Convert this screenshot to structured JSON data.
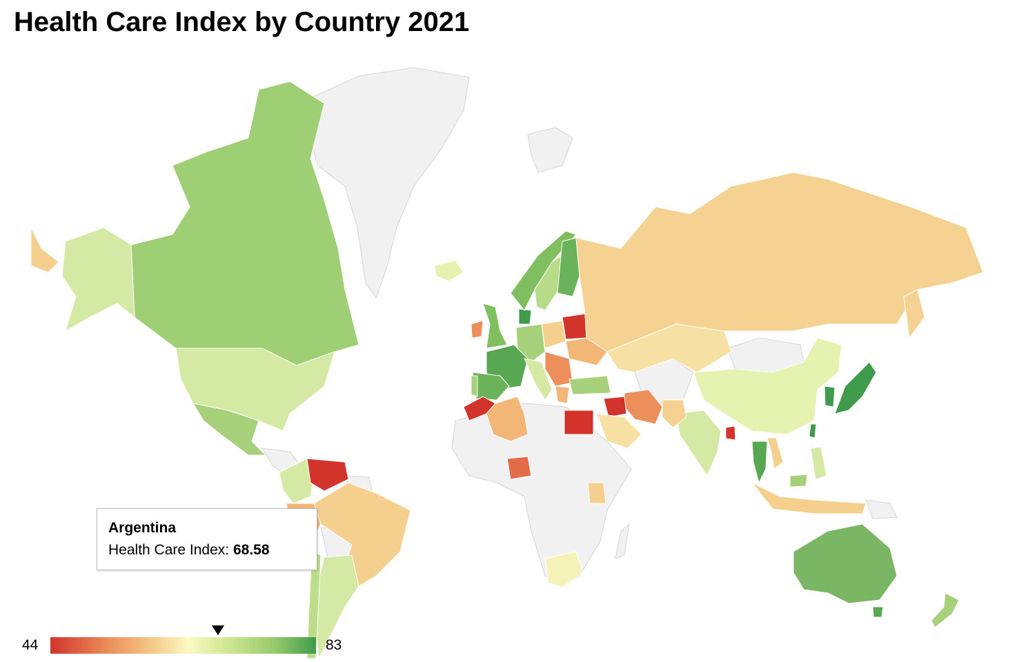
{
  "title": "Health Care Index by Country 2021",
  "legend": {
    "min_label": "44",
    "max_label": "83",
    "min": 44,
    "max": 83,
    "marker_value": 68.58,
    "colors": [
      "#d2342c",
      "#ec8f5a",
      "#f5cf8d",
      "#fbf9c3",
      "#d8ea9a",
      "#98cb6b",
      "#3f9b4b"
    ]
  },
  "tooltip": {
    "country": "Argentina",
    "label": "Health Care Index:",
    "value": "68.58"
  },
  "no_data_color": "#f1f1f1",
  "chart_data": {
    "type": "choropleth",
    "title": "Health Care Index by Country 2021",
    "value_range": [
      44,
      83
    ],
    "regions": [
      {
        "name": "Canada",
        "value": 71
      },
      {
        "name": "United States",
        "value": 69
      },
      {
        "name": "Alaska",
        "value": 67
      },
      {
        "name": "Mexico",
        "value": 71
      },
      {
        "name": "Colombia",
        "value": 66
      },
      {
        "name": "Venezuela",
        "value": 45
      },
      {
        "name": "Brazil",
        "value": 57
      },
      {
        "name": "Peru",
        "value": 55
      },
      {
        "name": "Argentina",
        "value": 68.58
      },
      {
        "name": "Chile",
        "value": 67
      },
      {
        "name": "Iceland",
        "value": 66
      },
      {
        "name": "Ireland",
        "value": 52
      },
      {
        "name": "United Kingdom",
        "value": 74
      },
      {
        "name": "France",
        "value": 79
      },
      {
        "name": "Spain",
        "value": 78
      },
      {
        "name": "Portugal",
        "value": 73
      },
      {
        "name": "Germany",
        "value": 73
      },
      {
        "name": "Netherlands",
        "value": 76
      },
      {
        "name": "Denmark",
        "value": 80
      },
      {
        "name": "Norway",
        "value": 75
      },
      {
        "name": "Sweden",
        "value": 70
      },
      {
        "name": "Finland",
        "value": 77
      },
      {
        "name": "Poland",
        "value": 58
      },
      {
        "name": "Belarus",
        "value": 45
      },
      {
        "name": "Ukraine",
        "value": 54
      },
      {
        "name": "Italy",
        "value": 66
      },
      {
        "name": "Hungary",
        "value": 55
      },
      {
        "name": "Romania",
        "value": 55
      },
      {
        "name": "Greece",
        "value": 55
      },
      {
        "name": "Turkey",
        "value": 70
      },
      {
        "name": "Russia",
        "value": 58
      },
      {
        "name": "Kazakhstan",
        "value": 61
      },
      {
        "name": "China",
        "value": 65
      },
      {
        "name": "Japan",
        "value": 82
      },
      {
        "name": "Taiwan",
        "value": 83
      },
      {
        "name": "South Korea",
        "value": 82
      },
      {
        "name": "India",
        "value": 65
      },
      {
        "name": "Pakistan",
        "value": 60
      },
      {
        "name": "Iran",
        "value": 52
      },
      {
        "name": "Iraq",
        "value": 46
      },
      {
        "name": "Saudi Arabia",
        "value": 60
      },
      {
        "name": "Egypt",
        "value": 47
      },
      {
        "name": "Morocco",
        "value": 46
      },
      {
        "name": "Algeria",
        "value": 56
      },
      {
        "name": "Nigeria",
        "value": 49
      },
      {
        "name": "Kenya",
        "value": 58
      },
      {
        "name": "South Africa",
        "value": 63
      },
      {
        "name": "Thailand",
        "value": 78
      },
      {
        "name": "Vietnam",
        "value": 58
      },
      {
        "name": "Philippines",
        "value": 66
      },
      {
        "name": "Malaysia",
        "value": 70
      },
      {
        "name": "Indonesia",
        "value": 58
      },
      {
        "name": "Bangladesh",
        "value": 45
      },
      {
        "name": "Australia",
        "value": 77
      },
      {
        "name": "New Zealand",
        "value": 70
      }
    ]
  }
}
